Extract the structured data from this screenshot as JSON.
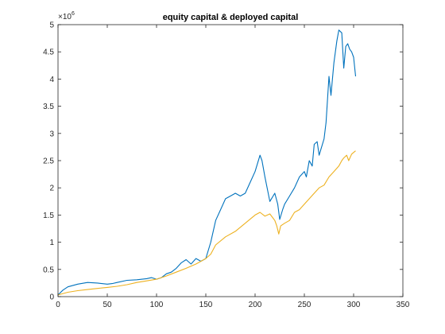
{
  "chart_data": {
    "type": "line",
    "title": "equity capital & deployed capital",
    "xlabel": "",
    "ylabel": "",
    "xlim": [
      0,
      350
    ],
    "ylim": [
      0,
      5000000
    ],
    "xticks": [
      0,
      50,
      100,
      150,
      200,
      250,
      300,
      350
    ],
    "xtick_labels": [
      "0",
      "50",
      "100",
      "150",
      "200",
      "250",
      "300",
      "350"
    ],
    "yticks": [
      0,
      500000,
      1000000,
      1500000,
      2000000,
      2500000,
      3000000,
      3500000,
      4000000,
      4500000,
      5000000
    ],
    "ytick_labels": [
      "0",
      "0.5",
      "1",
      "1.5",
      "2",
      "2.5",
      "3",
      "3.5",
      "4",
      "4.5",
      "5"
    ],
    "y_multiplier_base": "×10",
    "y_multiplier_exp": "6",
    "grid": false,
    "legend": "none",
    "series": [
      {
        "color": "#0072BD",
        "x": [
          0,
          5,
          10,
          20,
          30,
          40,
          50,
          55,
          60,
          70,
          80,
          90,
          95,
          100,
          105,
          110,
          115,
          120,
          125,
          130,
          135,
          140,
          145,
          150,
          155,
          160,
          165,
          170,
          175,
          180,
          185,
          190,
          195,
          200,
          205,
          207,
          210,
          215,
          220,
          223,
          225,
          228,
          230,
          235,
          240,
          245,
          250,
          252,
          255,
          258,
          260,
          263,
          265,
          270,
          272,
          275,
          277,
          280,
          283,
          285,
          288,
          290,
          292,
          294,
          296,
          298,
          300,
          302
        ],
        "y": [
          30000,
          120000,
          180000,
          230000,
          260000,
          250000,
          230000,
          240000,
          260000,
          300000,
          310000,
          330000,
          350000,
          320000,
          350000,
          420000,
          450000,
          520000,
          620000,
          680000,
          600000,
          700000,
          650000,
          700000,
          1000000,
          1400000,
          1600000,
          1800000,
          1850000,
          1900000,
          1850000,
          1900000,
          2100000,
          2300000,
          2600000,
          2500000,
          2200000,
          1750000,
          1900000,
          1700000,
          1420000,
          1600000,
          1700000,
          1850000,
          2000000,
          2200000,
          2300000,
          2200000,
          2500000,
          2400000,
          2800000,
          2850000,
          2600000,
          2900000,
          3200000,
          4050000,
          3700000,
          4300000,
          4700000,
          4900000,
          4850000,
          4200000,
          4600000,
          4650000,
          4550000,
          4500000,
          4400000,
          4050000
        ]
      },
      {
        "color": "#EDB120",
        "x": [
          0,
          10,
          20,
          30,
          40,
          50,
          60,
          70,
          80,
          90,
          100,
          110,
          120,
          130,
          140,
          150,
          155,
          160,
          170,
          180,
          190,
          200,
          205,
          210,
          215,
          220,
          222,
          224,
          226,
          230,
          235,
          240,
          245,
          250,
          255,
          260,
          265,
          270,
          275,
          280,
          285,
          288,
          290,
          293,
          295,
          298,
          300,
          302
        ],
        "y": [
          30000,
          80000,
          110000,
          130000,
          150000,
          170000,
          190000,
          220000,
          260000,
          290000,
          320000,
          380000,
          450000,
          520000,
          600000,
          700000,
          780000,
          950000,
          1100000,
          1200000,
          1350000,
          1500000,
          1550000,
          1480000,
          1520000,
          1400000,
          1300000,
          1150000,
          1300000,
          1350000,
          1400000,
          1550000,
          1600000,
          1700000,
          1800000,
          1900000,
          2000000,
          2050000,
          2200000,
          2300000,
          2400000,
          2500000,
          2550000,
          2600000,
          2500000,
          2620000,
          2650000,
          2680000
        ]
      }
    ]
  }
}
